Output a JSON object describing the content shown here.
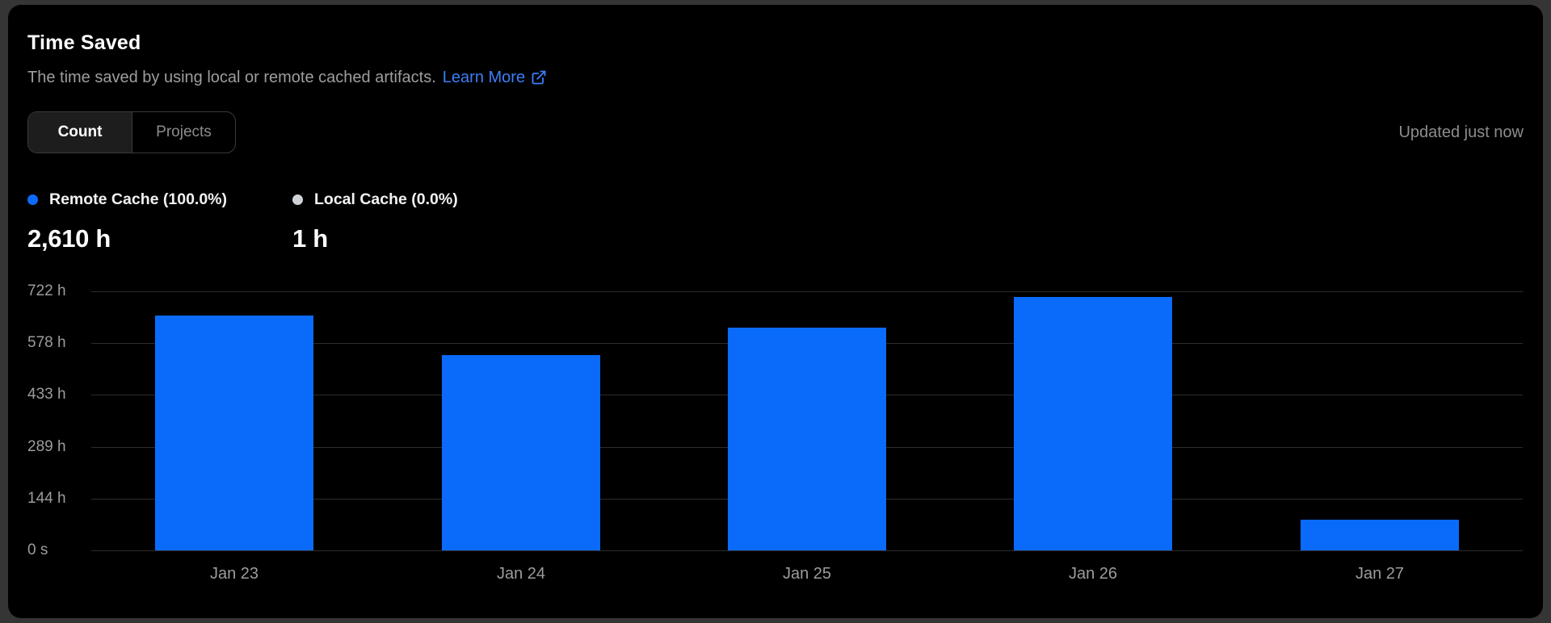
{
  "card": {
    "title": "Time Saved",
    "subtitle": "The time saved by using local or remote cached artifacts.",
    "learn_more_label": "Learn More",
    "updated_status": "Updated just now",
    "background": "#000000",
    "page_background": "#353535"
  },
  "toggle": {
    "options": [
      "Count",
      "Projects"
    ],
    "selected": "Count"
  },
  "legend": {
    "items": [
      {
        "label": "Remote Cache (100.0%)",
        "value": "2,610 h",
        "color": "#0a6bfb"
      },
      {
        "label": "Local Cache (0.0%)",
        "value": "1 h",
        "color": "#cfd2d6"
      }
    ]
  },
  "chart_data": {
    "type": "bar",
    "categories": [
      "Jan 23",
      "Jan 24",
      "Jan 25",
      "Jan 26",
      "Jan 27"
    ],
    "series": [
      {
        "name": "Remote Cache",
        "color": "#0a6bfb",
        "unit": "h",
        "values": [
          654,
          544,
          620,
          706,
          86
        ]
      },
      {
        "name": "Local Cache",
        "color": "#cfd2d6",
        "unit": "h",
        "values": [
          0,
          0,
          0,
          0,
          0
        ]
      }
    ],
    "ylim": [
      0,
      722
    ],
    "y_ticks": [
      {
        "value": 0,
        "label": "0 s"
      },
      {
        "value": 144.4,
        "label": "144 h"
      },
      {
        "value": 288.8,
        "label": "289 h"
      },
      {
        "value": 433.2,
        "label": "433 h"
      },
      {
        "value": 577.6,
        "label": "578 h"
      },
      {
        "value": 722,
        "label": "722 h"
      }
    ],
    "grid": "horizontal",
    "legend_position": "top-left",
    "gridline_color": "#2d2d2d",
    "axis_label_color": "#9c9c9c"
  }
}
